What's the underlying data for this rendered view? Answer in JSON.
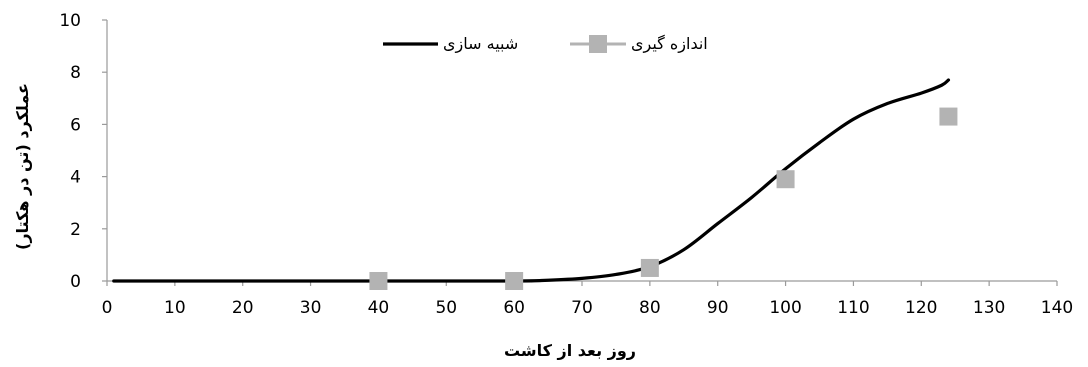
{
  "chart_data": {
    "type": "line",
    "title": "",
    "xlabel": "روز بعد از کاشت",
    "ylabel": "عملکرد (تن در هکتار)",
    "xlim": [
      0,
      140
    ],
    "ylim": [
      0,
      10
    ],
    "xticks": [
      0,
      10,
      20,
      30,
      40,
      50,
      60,
      70,
      80,
      90,
      100,
      110,
      120,
      130,
      140
    ],
    "yticks": [
      0,
      2,
      4,
      6,
      8,
      10
    ],
    "grid": false,
    "legend_position": "top-center",
    "series": [
      {
        "name": "شبیه سازی",
        "kind": "line",
        "color": "#000000",
        "x": [
          1,
          40,
          60,
          65,
          70,
          75,
          80,
          85,
          90,
          95,
          100,
          105,
          110,
          115,
          120,
          123,
          124
        ],
        "y": [
          0,
          0,
          0,
          0.03,
          0.1,
          0.25,
          0.55,
          1.2,
          2.2,
          3.2,
          4.3,
          5.3,
          6.2,
          6.8,
          7.2,
          7.5,
          7.7
        ]
      },
      {
        "name": "اندازه گیری",
        "kind": "marker-line",
        "color": "#b3b3b3",
        "x": [
          40,
          60,
          80,
          100,
          124
        ],
        "y": [
          0,
          0,
          0.5,
          3.9,
          6.3
        ]
      }
    ]
  }
}
